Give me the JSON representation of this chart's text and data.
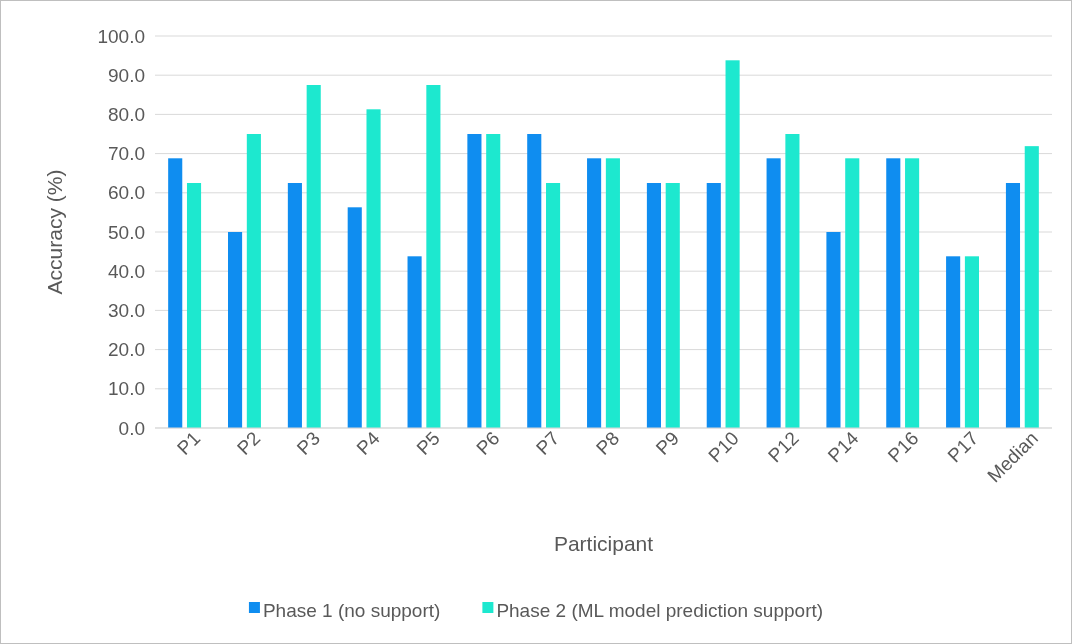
{
  "chart_data": {
    "type": "bar",
    "xlabel": "Participant",
    "ylabel": "Accuracy (%)",
    "categories": [
      "P1",
      "P2",
      "P3",
      "P4",
      "P5",
      "P6",
      "P7",
      "P8",
      "P9",
      "P10",
      "P12",
      "P14",
      "P16",
      "P17",
      "Median"
    ],
    "series": [
      {
        "name": "Phase 1 (no support)",
        "color": "#0f8df0",
        "values": [
          68.8,
          50.0,
          62.5,
          56.3,
          43.8,
          75.0,
          75.0,
          68.8,
          62.5,
          62.5,
          68.8,
          50.0,
          68.8,
          43.8,
          62.5
        ]
      },
      {
        "name": "Phase 2 (ML model prediction support)",
        "color": "#1de8cf",
        "values": [
          62.5,
          75.0,
          87.5,
          81.3,
          87.5,
          75.0,
          62.5,
          68.8,
          62.5,
          93.8,
          75.0,
          68.8,
          68.8,
          43.8,
          71.9
        ]
      }
    ],
    "ylim": [
      0,
      100
    ],
    "yticks": [
      {
        "value": 0,
        "label": "0.0"
      },
      {
        "value": 10,
        "label": "10.0"
      },
      {
        "value": 20,
        "label": "20.0"
      },
      {
        "value": 30,
        "label": "30.0"
      },
      {
        "value": 40,
        "label": "40.0"
      },
      {
        "value": 50,
        "label": "50.0"
      },
      {
        "value": 60,
        "label": "60.0"
      },
      {
        "value": 70,
        "label": "70.0"
      },
      {
        "value": 80,
        "label": "80.0"
      },
      {
        "value": 90,
        "label": "90.0"
      },
      {
        "value": 100,
        "label": "100.0"
      }
    ],
    "grid": "y",
    "legend": "bottom"
  }
}
